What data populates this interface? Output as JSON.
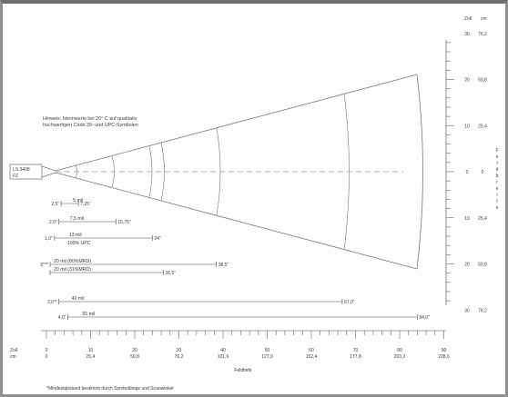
{
  "scanner": {
    "line1": "LS 3408",
    "line2": "FZ"
  },
  "hint": {
    "line1": "Hinweis: Nennwerte bei 20° C auf qualitativ",
    "line2": "hochwertigen Code 39- und UPC-Symbolen"
  },
  "right_axis": {
    "unit_zoll": "Zoll",
    "unit_cm": "cm",
    "title_letters": [
      "F",
      "e",
      "l",
      "d",
      "b",
      "r",
      "e",
      "i",
      "t",
      "e"
    ],
    "labels": [
      {
        "zoll": "30",
        "cm": "76,2"
      },
      {
        "zoll": "20",
        "cm": "50,8"
      },
      {
        "zoll": "10",
        "cm": "25,4"
      },
      {
        "zoll": "0",
        "cm": "0"
      },
      {
        "zoll": "10",
        "cm": "25,4"
      },
      {
        "zoll": "20",
        "cm": "50,8"
      },
      {
        "zoll": "30",
        "cm": "76,2"
      }
    ]
  },
  "bottom_axis": {
    "row1_label": "Zoll",
    "row2_label": "cm",
    "zoll": [
      "0",
      "10",
      "20",
      "30",
      "40",
      "50",
      "60",
      "70",
      "80",
      "90"
    ],
    "cm": [
      "0",
      "25,4",
      "50,8",
      "76,2",
      "101,6",
      "127,0",
      "152,4",
      "177,8",
      "203,2",
      "228,6"
    ],
    "title": "Feldtiefe"
  },
  "ranges": [
    {
      "near": "2,5\"",
      "label": "5 mil",
      "far": "7,25\""
    },
    {
      "near": "2,0\"",
      "label": "7,5 mil",
      "far": "15,75\""
    },
    {
      "near": "1,0\"",
      "label": "13 mil",
      "label2": "100% UPC",
      "far": "24\""
    },
    {
      "near": "0\"**",
      "label": "20 mil (80%MRD)",
      "far": "38,5\""
    },
    {
      "near": "",
      "label": "20 mil (31%MRD)",
      "far": "26,5\""
    },
    {
      "near": "2,0\"*",
      "label": "40 mil",
      "far": "67,0\""
    },
    {
      "near": "4,0\"",
      "label": "55 mil",
      "far": "84,0\""
    }
  ],
  "footnote": "*Mindestabstand bestimmt durch Symbollänge und Scanwinkel"
}
